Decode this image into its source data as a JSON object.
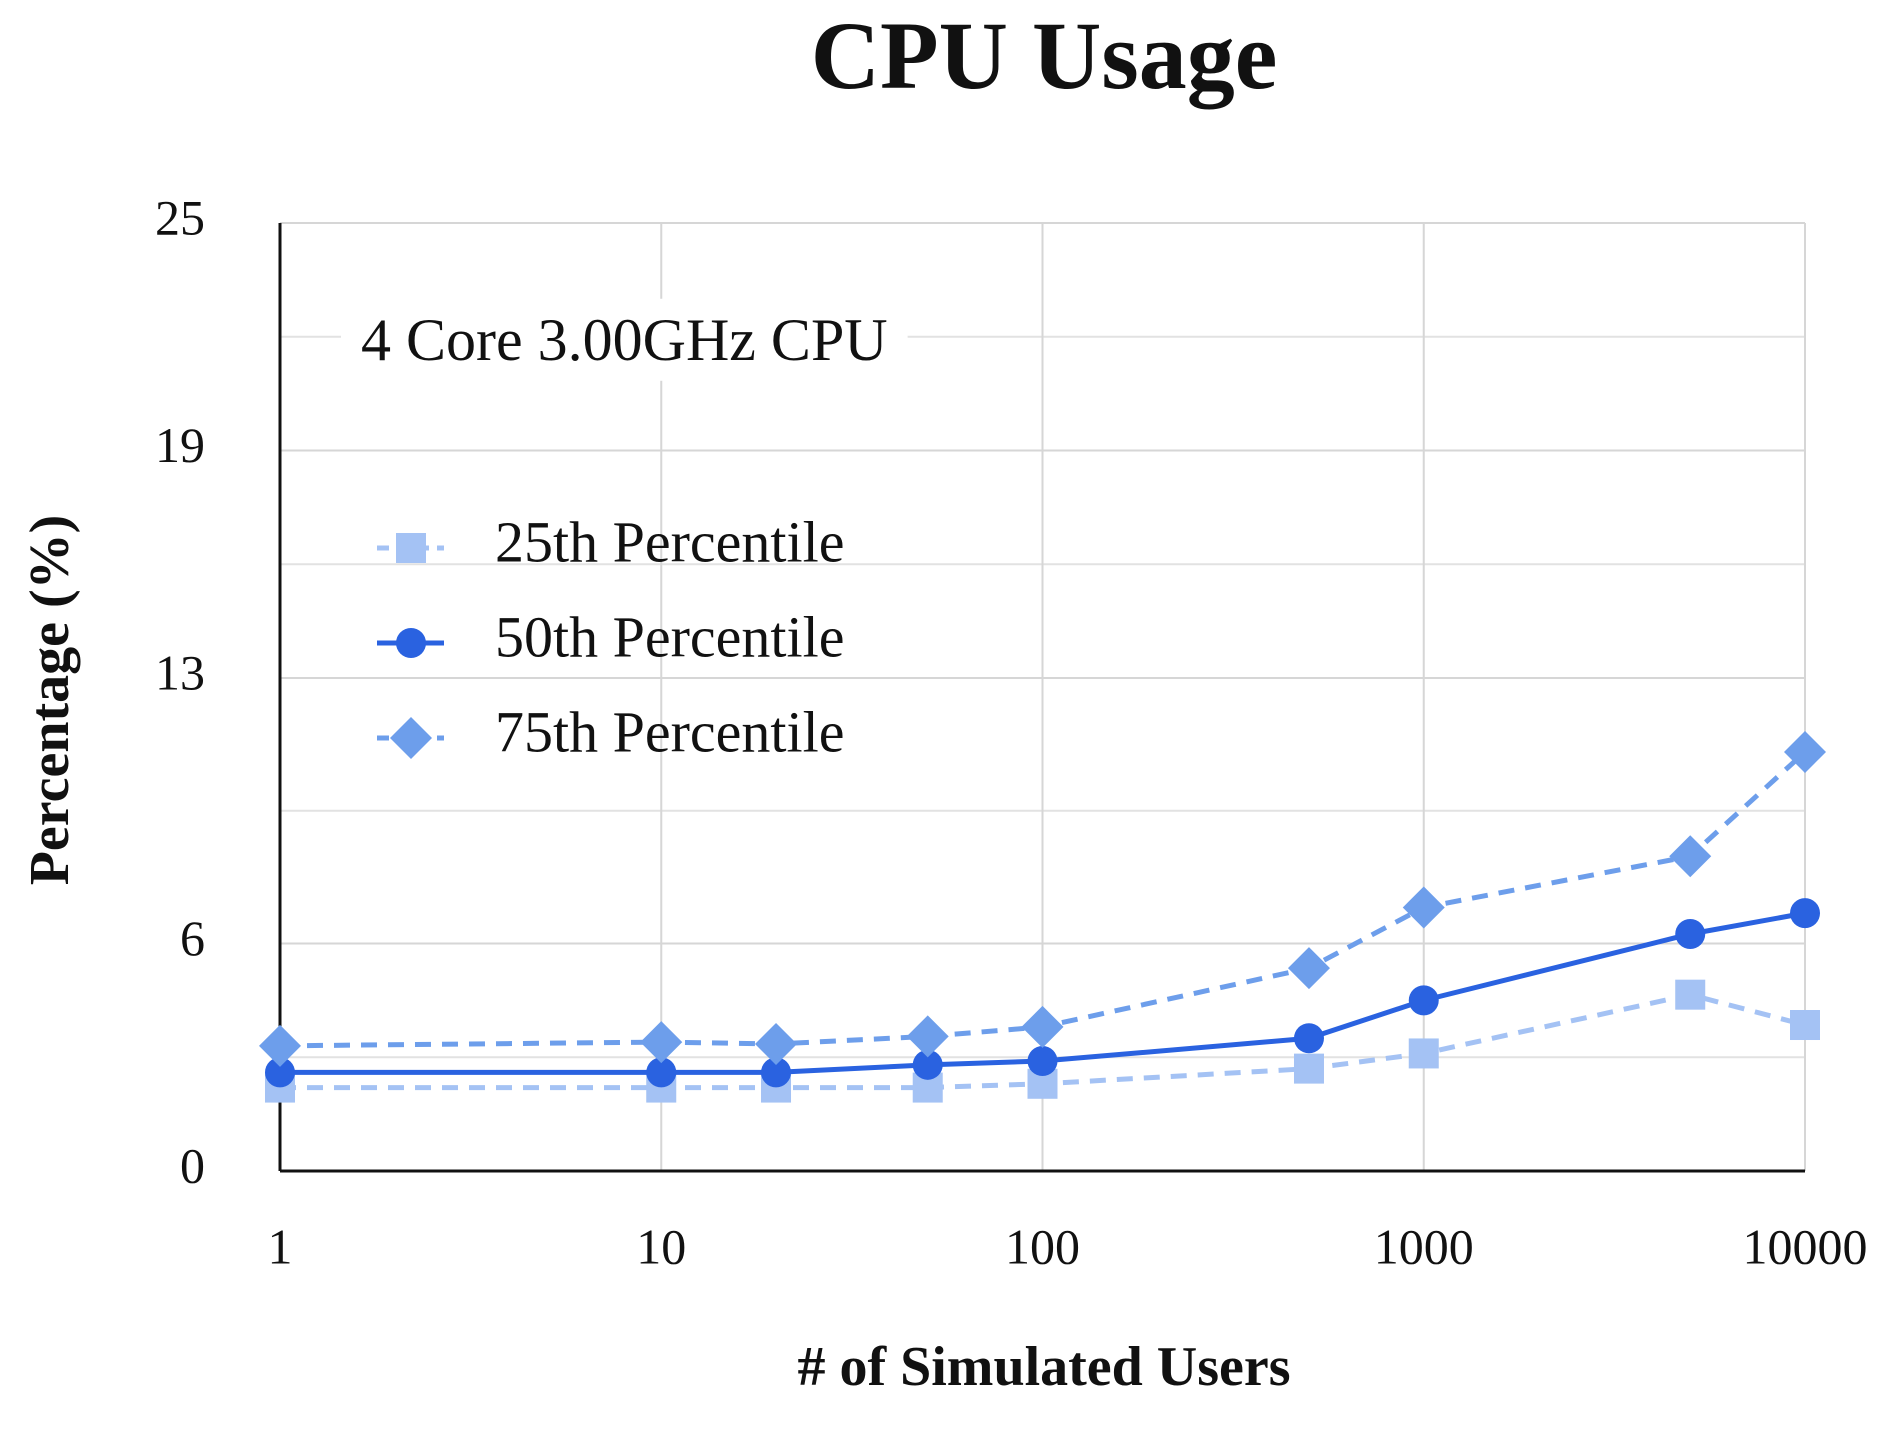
{
  "chart_data": {
    "type": "line",
    "title": "CPU Usage",
    "x_label": "# of Simulated Users",
    "y_label": "Percentage (%)",
    "annotation": "4 Core 3.00GHz CPU",
    "x": [
      1,
      10,
      20,
      50,
      100,
      500,
      1000,
      5000,
      10000
    ],
    "series": [
      {
        "name": "25th Percentile",
        "color": "#a4c2f4",
        "dashed": true,
        "marker": "square",
        "values": [
          2.2,
          2.2,
          2.2,
          2.2,
          2.3,
          2.7,
          3.1,
          4.65,
          3.85
        ]
      },
      {
        "name": "50th Percentile",
        "color": "#2a62e0",
        "dashed": false,
        "marker": "circle",
        "values": [
          2.6,
          2.6,
          2.6,
          2.8,
          2.9,
          3.5,
          4.5,
          6.25,
          6.8
        ]
      },
      {
        "name": "75th Percentile",
        "color": "#6d9eeb",
        "dashed": true,
        "marker": "diamond",
        "values": [
          3.3,
          3.4,
          3.35,
          3.55,
          3.8,
          5.35,
          6.95,
          8.3,
          11.05
        ]
      }
    ],
    "xlim": [
      1,
      10000
    ],
    "xticks": [
      1,
      10,
      100,
      1000,
      10000
    ],
    "x_log": true,
    "ylim": [
      0,
      25
    ],
    "yticks": [
      0,
      6,
      13,
      19,
      25
    ],
    "grid": true,
    "legend": "upper left"
  }
}
